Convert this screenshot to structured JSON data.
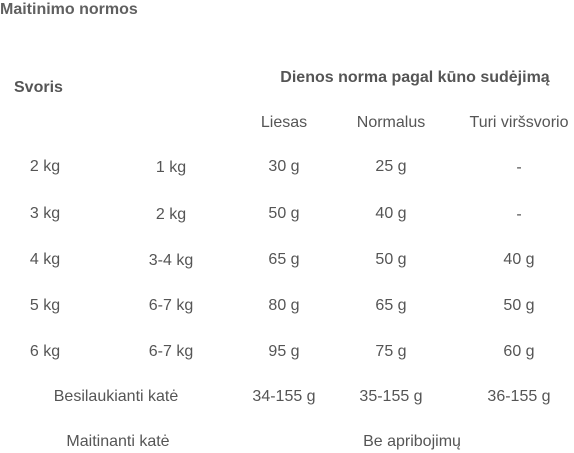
{
  "title": "Maitinimo normos",
  "header": {
    "weight": "Svoris",
    "norm": "Dienos norma pagal kūno sudėjimą",
    "columns": [
      "Liesas",
      "Normalus",
      "Turi viršsvorio"
    ]
  },
  "rows": [
    {
      "adult": "2 kg",
      "kitten": "1 kg",
      "lean": "30 g",
      "normal": "25 g",
      "overweight": "-"
    },
    {
      "adult": "3 kg",
      "kitten": "2 kg",
      "lean": "50 g",
      "normal": "40 g",
      "overweight": "-"
    },
    {
      "adult": "4 kg",
      "kitten": "3-4 kg",
      "lean": "65 g",
      "normal": "50 g",
      "overweight": "40 g"
    },
    {
      "adult": "5 kg",
      "kitten": "6-7 kg",
      "lean": "80 g",
      "normal": "65 g",
      "overweight": "50 g"
    },
    {
      "adult": "6 kg",
      "kitten": "6-7 kg",
      "lean": "95 g",
      "normal": "75 g",
      "overweight": "60 g"
    }
  ],
  "pregnant": {
    "label": "Besilaukianti katė",
    "lean": "34-155 g",
    "normal": "35-155 g",
    "overweight": "36-155 g"
  },
  "nursing": {
    "label": "Maitinanti katė",
    "value": "Be apribojimų"
  }
}
